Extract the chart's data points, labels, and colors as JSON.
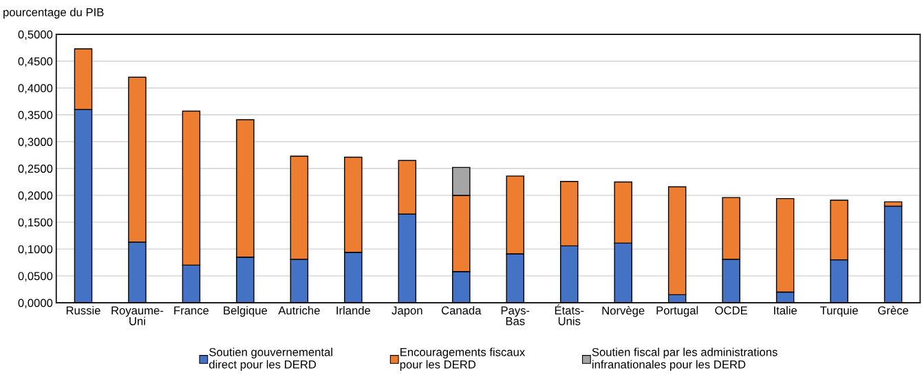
{
  "chart_data": {
    "type": "bar",
    "stacked": true,
    "ylabel": "pourcentage du PIB",
    "categories": [
      "Russie",
      "Royaume-\nUni",
      "France",
      "Belgique",
      "Autriche",
      "Irlande",
      "Japon",
      "Canada",
      "Pays-\nBas",
      "États-\nUnis",
      "Norvège",
      "Portugal",
      "OCDE",
      "Italie",
      "Turquie",
      "Grèce"
    ],
    "series": [
      {
        "name": "Soutien gouvernemental\ndirect pour les DERD",
        "color": "#4472c4",
        "values": [
          0.36,
          0.113,
          0.07,
          0.085,
          0.081,
          0.094,
          0.165,
          0.058,
          0.091,
          0.106,
          0.111,
          0.015,
          0.081,
          0.02,
          0.08,
          0.18
        ]
      },
      {
        "name": "Encouragements fiscaux\npour les DERD",
        "color": "#ed7d31",
        "values": [
          0.113,
          0.307,
          0.287,
          0.256,
          0.192,
          0.177,
          0.1,
          0.142,
          0.145,
          0.12,
          0.114,
          0.201,
          0.115,
          0.174,
          0.111,
          0.008
        ]
      },
      {
        "name": "Soutien fiscal par les administrations\ninfranationales pour les DERD",
        "color": "#a5a5a5",
        "values": [
          null,
          null,
          null,
          null,
          null,
          null,
          null,
          0.052,
          null,
          null,
          null,
          null,
          null,
          null,
          null,
          null
        ]
      }
    ],
    "ylim": [
      0,
      0.5
    ],
    "yticks": [
      {
        "value": 0,
        "label": "0,0000"
      },
      {
        "value": 0.05,
        "label": "0,0500"
      },
      {
        "value": 0.1,
        "label": "0,1000"
      },
      {
        "value": 0.15,
        "label": "0,1500"
      },
      {
        "value": 0.2,
        "label": "0,2000"
      },
      {
        "value": 0.25,
        "label": "0,2500"
      },
      {
        "value": 0.3,
        "label": "0,3000"
      },
      {
        "value": 0.35,
        "label": "0,3500"
      },
      {
        "value": 0.4,
        "label": "0,4000"
      },
      {
        "value": 0.45,
        "label": "0,4500"
      },
      {
        "value": 0.5,
        "label": "0,5000"
      }
    ],
    "grid": "y",
    "legend": "bottom"
  }
}
